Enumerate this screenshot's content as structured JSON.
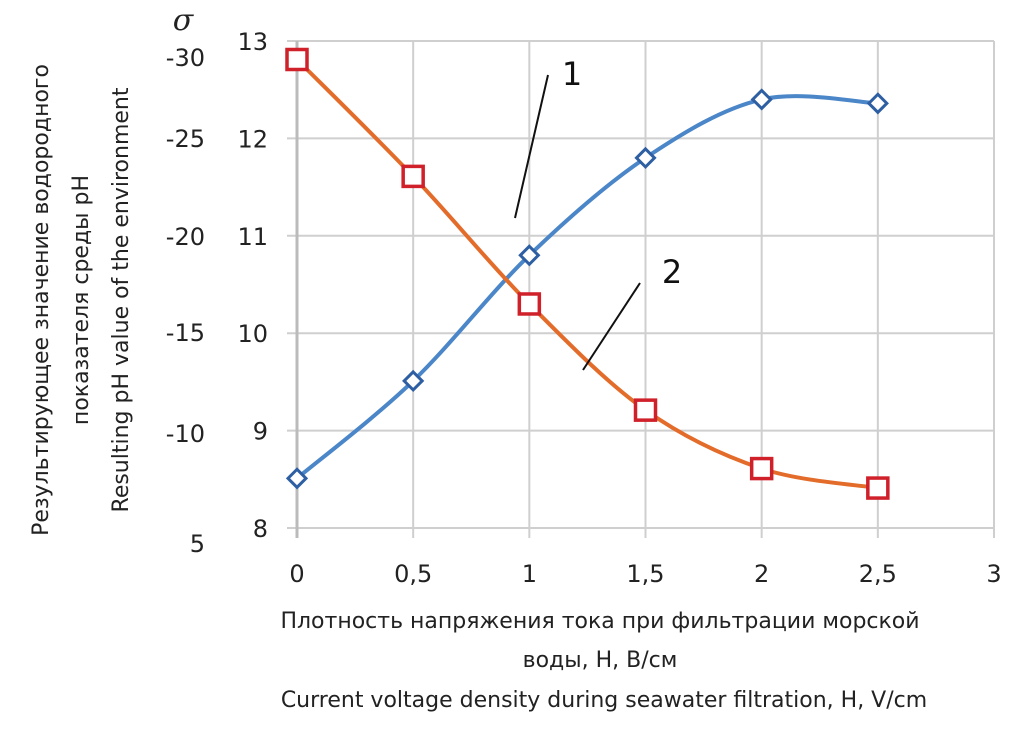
{
  "chart_data": {
    "type": "line",
    "title": "",
    "xlabel_lines": [
      "Плотность напряжения тока при фильтрации морской",
      "воды, Н, В/см",
      "Current voltage density during seawater filtration, H, V/cm"
    ],
    "ylabel_lines": [
      "Результирующее значение водородного",
      "показателя среды pH",
      "Resulting pH value of the environment"
    ],
    "y2_symbol": "σ",
    "x_ticks": [
      "0",
      "0,5",
      "1",
      "1,5",
      "2",
      "2,5",
      "3"
    ],
    "x_tick_values": [
      0,
      0.5,
      1,
      1.5,
      2,
      2.5,
      3
    ],
    "xlim": [
      0,
      3
    ],
    "y_ticks": [
      "8",
      "9",
      "10",
      "11",
      "12",
      "13"
    ],
    "y_tick_values": [
      8,
      9,
      10,
      11,
      12,
      13
    ],
    "ylim": [
      8,
      13
    ],
    "sigma_ticks": [
      "5",
      "-10",
      "-15",
      "-20",
      "-25",
      "-30"
    ],
    "grid": true,
    "x": [
      0,
      0.5,
      1,
      1.5,
      2,
      2.5
    ],
    "series": [
      {
        "name": "1",
        "color": "#4a86c8",
        "marker": "diamond",
        "marker_color": "#2e5fa3",
        "values": [
          8.51,
          9.51,
          10.8,
          11.8,
          12.4,
          12.36
        ]
      },
      {
        "name": "2",
        "color": "#e36c2a",
        "marker": "square",
        "marker_color": "#d0202a",
        "values": [
          12.81,
          11.61,
          10.3,
          9.21,
          8.61,
          8.41
        ]
      }
    ],
    "annotations": [
      {
        "text": "1",
        "at_x": 0.95,
        "at_y": 11.2
      },
      {
        "text": "2",
        "at_x": 1.2,
        "at_y": 9.6
      }
    ]
  }
}
